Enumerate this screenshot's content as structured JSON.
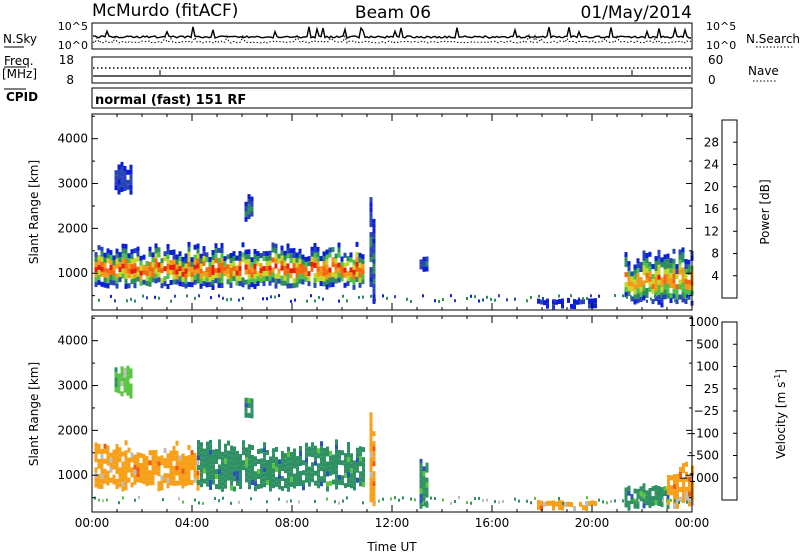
{
  "header": {
    "station": "McMurdo (fitACF)",
    "beam": "Beam 06",
    "date": "01/May/2014"
  },
  "sky_panel": {
    "left_label": "N.Sky",
    "right_label": "N.Search",
    "tick_top": "10^5",
    "tick_bottom": "10^0"
  },
  "freq_panel": {
    "left_label_1": "Freq.",
    "left_label_2": "[MHz]",
    "left_ticks": [
      "18",
      "8"
    ],
    "right_label": "Nave",
    "right_ticks": [
      "60",
      "0"
    ]
  },
  "cpid_panel": {
    "label": "CPID",
    "text": "normal (fast) 151 RF"
  },
  "colors": {
    "power_scale": [
      "#0a1fd6",
      "#2a45b8",
      "#2f8c5e",
      "#4dbf4a",
      "#c8d82a",
      "#f29a1a",
      "#f26a10",
      "#e6200e"
    ],
    "velocity_scale": [
      "#e81e0e",
      "#f25a12",
      "#f7a01a",
      "#bdbdbd",
      "#58c640",
      "#2f9064",
      "#2a55b0",
      "#2038c8"
    ]
  },
  "chart_data": [
    {
      "type": "heatmap",
      "name": "power",
      "xlabel": "",
      "ylabel": "Slant Range [km]",
      "ylim": [
        180,
        4550
      ],
      "xlim": [
        0,
        24
      ],
      "y_ticks": [
        1000,
        2000,
        3000,
        4000
      ],
      "colorbar_label": "Power [dB]",
      "colorbar_ticks": [
        "4",
        "8",
        "12",
        "16",
        "20",
        "24",
        "28"
      ],
      "regions": [
        {
          "t": [
            0.1,
            10.9
          ],
          "r": [
            700,
            1700
          ],
          "level": 7
        },
        {
          "t": [
            0.9,
            1.6
          ],
          "r": [
            2800,
            3500
          ],
          "level": 1
        },
        {
          "t": [
            6.1,
            6.4
          ],
          "r": [
            2200,
            2800
          ],
          "level": 2
        },
        {
          "t": [
            11.1,
            11.3
          ],
          "r": [
            300,
            2700
          ],
          "level": 2
        },
        {
          "t": [
            13.1,
            13.4
          ],
          "r": [
            1100,
            1400
          ],
          "level": 1
        },
        {
          "t": [
            17.8,
            20.2
          ],
          "r": [
            300,
            450
          ],
          "level": 1
        },
        {
          "t": [
            21.3,
            24.0
          ],
          "r": [
            300,
            1600
          ],
          "level": 6
        }
      ]
    },
    {
      "type": "heatmap",
      "name": "velocity",
      "xlabel": "Time UT",
      "ylabel": "Slant Range [km]",
      "ylim": [
        180,
        4550
      ],
      "xlim": [
        0,
        24
      ],
      "y_ticks": [
        1000,
        2000,
        3000,
        4000
      ],
      "x_ticks": [
        "00:00",
        "04:00",
        "08:00",
        "12:00",
        "16:00",
        "20:00",
        "00:00"
      ],
      "colorbar_label": "Velocity [m s^-1]",
      "colorbar_ticks": [
        "-1000",
        "-500",
        "-100",
        "-25",
        "25",
        "100",
        "500",
        "1000"
      ],
      "regions": [
        {
          "t": [
            0.1,
            4.2
          ],
          "r": [
            700,
            1800
          ],
          "level": "-100"
        },
        {
          "t": [
            4.2,
            10.9
          ],
          "r": [
            700,
            1800
          ],
          "level": "100"
        },
        {
          "t": [
            0.9,
            1.6
          ],
          "r": [
            2800,
            3500
          ],
          "level": "25"
        },
        {
          "t": [
            6.1,
            6.4
          ],
          "r": [
            2200,
            2800
          ],
          "level": "100"
        },
        {
          "t": [
            11.1,
            11.3
          ],
          "r": [
            300,
            2700
          ],
          "level": "-100"
        },
        {
          "t": [
            13.1,
            13.4
          ],
          "r": [
            300,
            1400
          ],
          "level": "100"
        },
        {
          "t": [
            17.8,
            20.2
          ],
          "r": [
            300,
            450
          ],
          "level": "-100"
        },
        {
          "t": [
            21.3,
            23.0
          ],
          "r": [
            300,
            900
          ],
          "level": "100"
        },
        {
          "t": [
            23.0,
            24.0
          ],
          "r": [
            300,
            1300
          ],
          "level": "-100"
        }
      ]
    }
  ]
}
